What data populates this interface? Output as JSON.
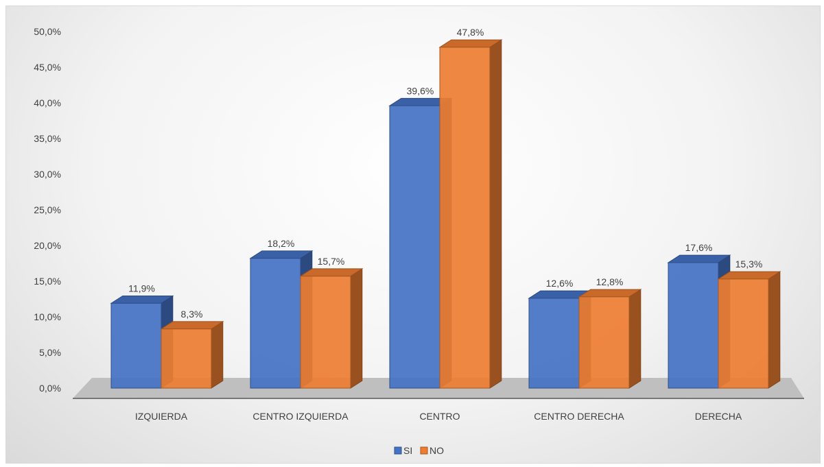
{
  "chart_data": {
    "type": "bar",
    "style": "3d-clustered-column",
    "categories": [
      "IZQUIERDA",
      "CENTRO IZQUIERDA",
      "CENTRO",
      "CENTRO DERECHA",
      "DERECHA"
    ],
    "series": [
      {
        "name": "SI",
        "values": [
          11.9,
          18.2,
          39.6,
          12.6,
          17.6
        ],
        "labels": [
          "11,9%",
          "18,2%",
          "39,6%",
          "12,6%",
          "17,6%"
        ],
        "color": "#4472c4"
      },
      {
        "name": "NO",
        "values": [
          8.3,
          15.7,
          47.8,
          12.8,
          15.3
        ],
        "labels": [
          "8,3%",
          "15,7%",
          "47,8%",
          "12,8%",
          "15,3%"
        ],
        "color": "#ed7d31"
      }
    ],
    "ylim": [
      0,
      50
    ],
    "yticks": [
      0,
      5,
      10,
      15,
      20,
      25,
      30,
      35,
      40,
      45,
      50
    ],
    "ytick_labels": [
      "0,0%",
      "5,0%",
      "10,0%",
      "15,0%",
      "20,0%",
      "25,0%",
      "30,0%",
      "35,0%",
      "40,0%",
      "45,0%",
      "50,0%"
    ],
    "grid": false,
    "legend_position": "bottom",
    "title": "",
    "xlabel": "",
    "ylabel": ""
  }
}
